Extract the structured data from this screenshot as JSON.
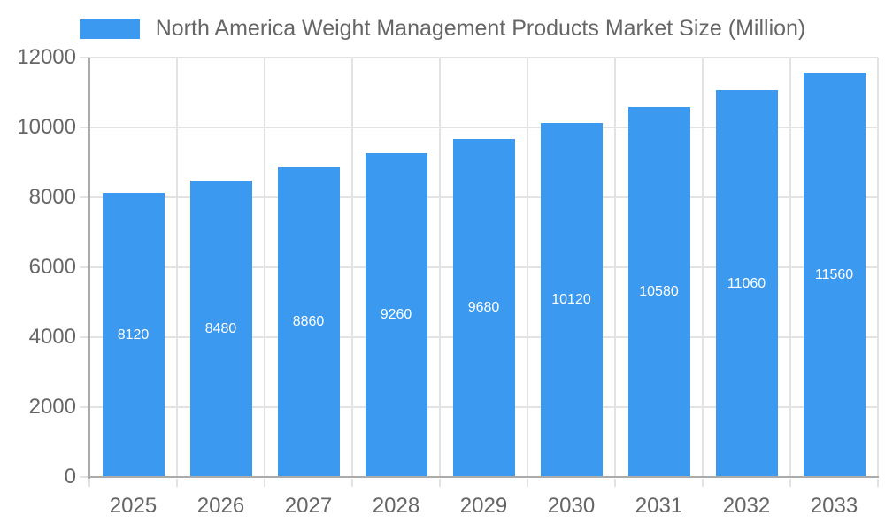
{
  "legend": {
    "label": "North America Weight Management Products Market Size (Million)"
  },
  "chart_data": {
    "type": "bar",
    "title": "North America Weight Management Products Market Size (Million)",
    "categories": [
      "2025",
      "2026",
      "2027",
      "2028",
      "2029",
      "2030",
      "2031",
      "2032",
      "2033"
    ],
    "values": [
      8120,
      8480,
      8860,
      9260,
      9680,
      10120,
      10580,
      11060,
      11560
    ],
    "series": [
      {
        "name": "North America Weight Management Products Market Size (Million)",
        "values": [
          8120,
          8480,
          8860,
          9260,
          9680,
          10120,
          10580,
          11060,
          11560
        ]
      }
    ],
    "xlabel": "",
    "ylabel": "",
    "ylim": [
      0,
      12000
    ],
    "yticks": [
      0,
      2000,
      4000,
      6000,
      8000,
      10000,
      12000
    ],
    "grid": true,
    "legend_position": "top-center",
    "data_label_position": "inside-center",
    "colors": {
      "bar": "#3B99F0",
      "bar_label": "#FFFFFF",
      "axis_text": "#666666",
      "grid_line": "#E3E3E3",
      "axis_line": "#ABABAB",
      "background": "#FFFFFF"
    }
  }
}
